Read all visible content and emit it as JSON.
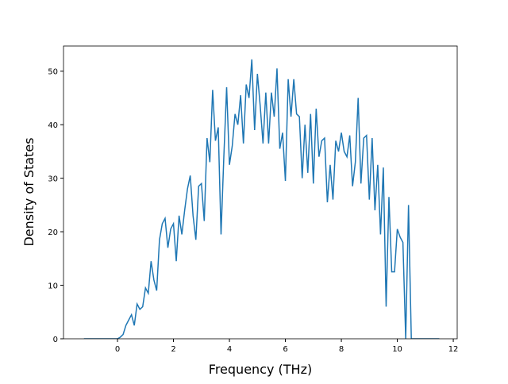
{
  "chart_data": {
    "type": "line",
    "xlabel": "Frequency (THz)",
    "ylabel": "Density of States",
    "x": [
      -1.2,
      -1.1,
      -1.0,
      -0.9,
      -0.8,
      -0.7,
      -0.6,
      -0.5,
      -0.4,
      -0.3,
      -0.2,
      -0.1,
      0.0,
      0.1,
      0.2,
      0.3,
      0.4,
      0.5,
      0.6,
      0.7,
      0.8,
      0.9,
      1.0,
      1.1,
      1.2,
      1.3,
      1.4,
      1.5,
      1.6,
      1.7,
      1.8,
      1.9,
      2.0,
      2.1,
      2.2,
      2.3,
      2.4,
      2.5,
      2.6,
      2.7,
      2.8,
      2.9,
      3.0,
      3.1,
      3.2,
      3.3,
      3.4,
      3.5,
      3.6,
      3.7,
      3.8,
      3.9,
      4.0,
      4.1,
      4.2,
      4.3,
      4.4,
      4.5,
      4.6,
      4.7,
      4.8,
      4.9,
      5.0,
      5.1,
      5.2,
      5.3,
      5.4,
      5.5,
      5.6,
      5.7,
      5.8,
      5.9,
      6.0,
      6.1,
      6.2,
      6.3,
      6.4,
      6.5,
      6.6,
      6.7,
      6.8,
      6.9,
      7.0,
      7.1,
      7.2,
      7.3,
      7.4,
      7.5,
      7.6,
      7.7,
      7.8,
      7.9,
      8.0,
      8.1,
      8.2,
      8.3,
      8.4,
      8.5,
      8.6,
      8.7,
      8.8,
      8.9,
      9.0,
      9.1,
      9.2,
      9.3,
      9.4,
      9.5,
      9.6,
      9.7,
      9.8,
      9.9,
      10.0,
      10.1,
      10.2,
      10.3,
      10.4,
      10.5,
      10.6,
      10.7,
      10.8,
      10.9,
      11.0,
      11.1,
      11.2,
      11.3,
      11.4,
      11.5
    ],
    "series": [
      {
        "color": "#1f77b4",
        "values": [
          0,
          0,
          0,
          0,
          0,
          0,
          0,
          0,
          0,
          0,
          0,
          0,
          0,
          0.3,
          0.8,
          2.5,
          3.5,
          4.5,
          2.5,
          6.5,
          5.5,
          6,
          9.5,
          8.5,
          14.5,
          11,
          9,
          18.5,
          21.5,
          22.5,
          17,
          20.5,
          21.5,
          14.5,
          23,
          19.5,
          24,
          28,
          30.5,
          23,
          18.5,
          28.5,
          29,
          22,
          37.5,
          33,
          46.5,
          37,
          39.5,
          19.5,
          34,
          47,
          32.5,
          36,
          42,
          40,
          45.5,
          36.5,
          47.5,
          45,
          52.2,
          39,
          49.5,
          43.5,
          36.5,
          46,
          36.5,
          46,
          41.5,
          50.5,
          35.5,
          38.5,
          29.5,
          48.5,
          41.5,
          48.5,
          42,
          41.5,
          30,
          40,
          31,
          42,
          29,
          43,
          34,
          37,
          37.5,
          25.5,
          32.5,
          26,
          37,
          35,
          38.5,
          35,
          34,
          38,
          28.5,
          33,
          45,
          29,
          37.5,
          38,
          26,
          37.5,
          24,
          32.5,
          19.5,
          32,
          6,
          26.5,
          12.5,
          12.5,
          20.5,
          19,
          18,
          0,
          25,
          0,
          0,
          0,
          0,
          0,
          0,
          0,
          0,
          0,
          0,
          0
        ]
      }
    ],
    "xlim": [
      -1.93,
      12.14
    ],
    "ylim": [
      0,
      54.7
    ],
    "xticks": [
      0,
      2,
      4,
      6,
      8,
      10,
      12
    ],
    "yticks": [
      0,
      10,
      20,
      30,
      40,
      50
    ]
  }
}
